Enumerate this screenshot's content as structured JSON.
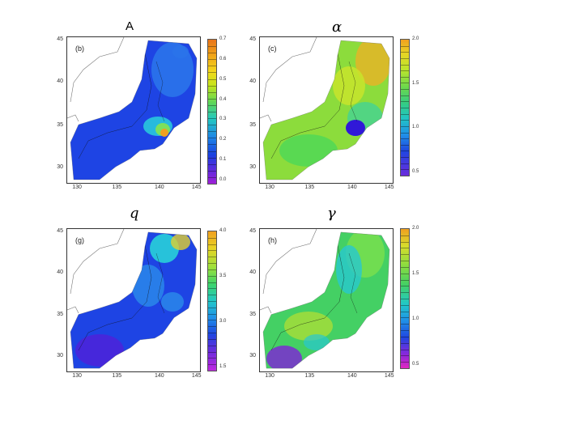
{
  "figure_label": "A",
  "panels": [
    {
      "title": "",
      "label": "(b)",
      "y_ticks": [
        "45",
        "40",
        "35",
        "30"
      ],
      "x_ticks": [
        "130",
        "135",
        "140",
        "145"
      ],
      "colorbar_ticks": [
        "0.7",
        "0.6",
        "0.5",
        "0.4",
        "0.3",
        "0.2",
        "0.1",
        "0.0"
      ],
      "colorbar_gradient": "linear-gradient(to bottom,#e8741a 0%,#f0a018 10%,#f4d81c 22%,#c4e41c 32%,#5cd65a 44%,#23c8c0 55%,#1d84e6 68%,#1a40e0 80%,#6828dc 92%,#a020d8 100%)",
      "map_colors": {
        "base": "#1e44e4",
        "light": "#2a74ea",
        "cyan": "#28c8dc",
        "green": "#7ce05c",
        "hot": "#f0a020"
      }
    },
    {
      "title": "α",
      "label": "(c)",
      "y_ticks": [
        "45",
        "40",
        "35",
        "30"
      ],
      "x_ticks": [
        "130",
        "135",
        "140",
        "145"
      ],
      "colorbar_ticks": [
        "2.0",
        "1.5",
        "1.0",
        "0.5"
      ],
      "colorbar_gradient": "linear-gradient(to bottom,#f0a020 0%,#e8d424 10%,#bce42c 22%,#6cd84c 35%,#34cc84 47%,#22c4c4 58%,#2090e8 70%,#2046e0 82%,#6a2cdc 100%)",
      "map_colors": {
        "base": "#8cdc3c",
        "light": "#c8e42c",
        "cyan": "#2cd0b0",
        "green": "#4cd858",
        "hot": "#f0b024",
        "cold": "#3018d8"
      }
    },
    {
      "title": "q",
      "label": "(g)",
      "y_ticks": [
        "45",
        "40",
        "35",
        "30"
      ],
      "x_ticks": [
        "130",
        "135",
        "140",
        "145"
      ],
      "colorbar_ticks": [
        "4.0",
        "3.5",
        "3.0",
        "1.5"
      ],
      "colorbar_gradient": "linear-gradient(to bottom,#f0a020 0%,#e8d424 12%,#9ce03c 26%,#3cd46c 38%,#22c8c8 50%,#2090e8 62%,#2046e0 74%,#6a2cdc 86%,#c028e0 100%)",
      "map_colors": {
        "base": "#1e44e4",
        "light": "#2a8cea",
        "cyan": "#28d0d8",
        "green": "#8ce04c",
        "hot": "#e0d030",
        "deep": "#5020d8"
      }
    },
    {
      "title": "γ",
      "label": "(h)",
      "y_ticks": [
        "45",
        "40",
        "35",
        "30"
      ],
      "x_ticks": [
        "130",
        "135",
        "140",
        "145"
      ],
      "colorbar_ticks": [
        "2.0",
        "1.5",
        "1.0",
        "0.5"
      ],
      "colorbar_gradient": "linear-gradient(to bottom,#f0a020 0%,#d8dc2c 12%,#8cdc40 26%,#44d064 40%,#22c8c8 54%,#2090e8 66%,#2046e0 78%,#8a28dc 90%,#e028c0 100%)",
      "map_colors": {
        "base": "#44d064",
        "light": "#7ce04c",
        "cyan": "#28c8d0",
        "green": "#30cc78",
        "hot": "#b8e030",
        "deep": "#8020d8"
      }
    }
  ]
}
